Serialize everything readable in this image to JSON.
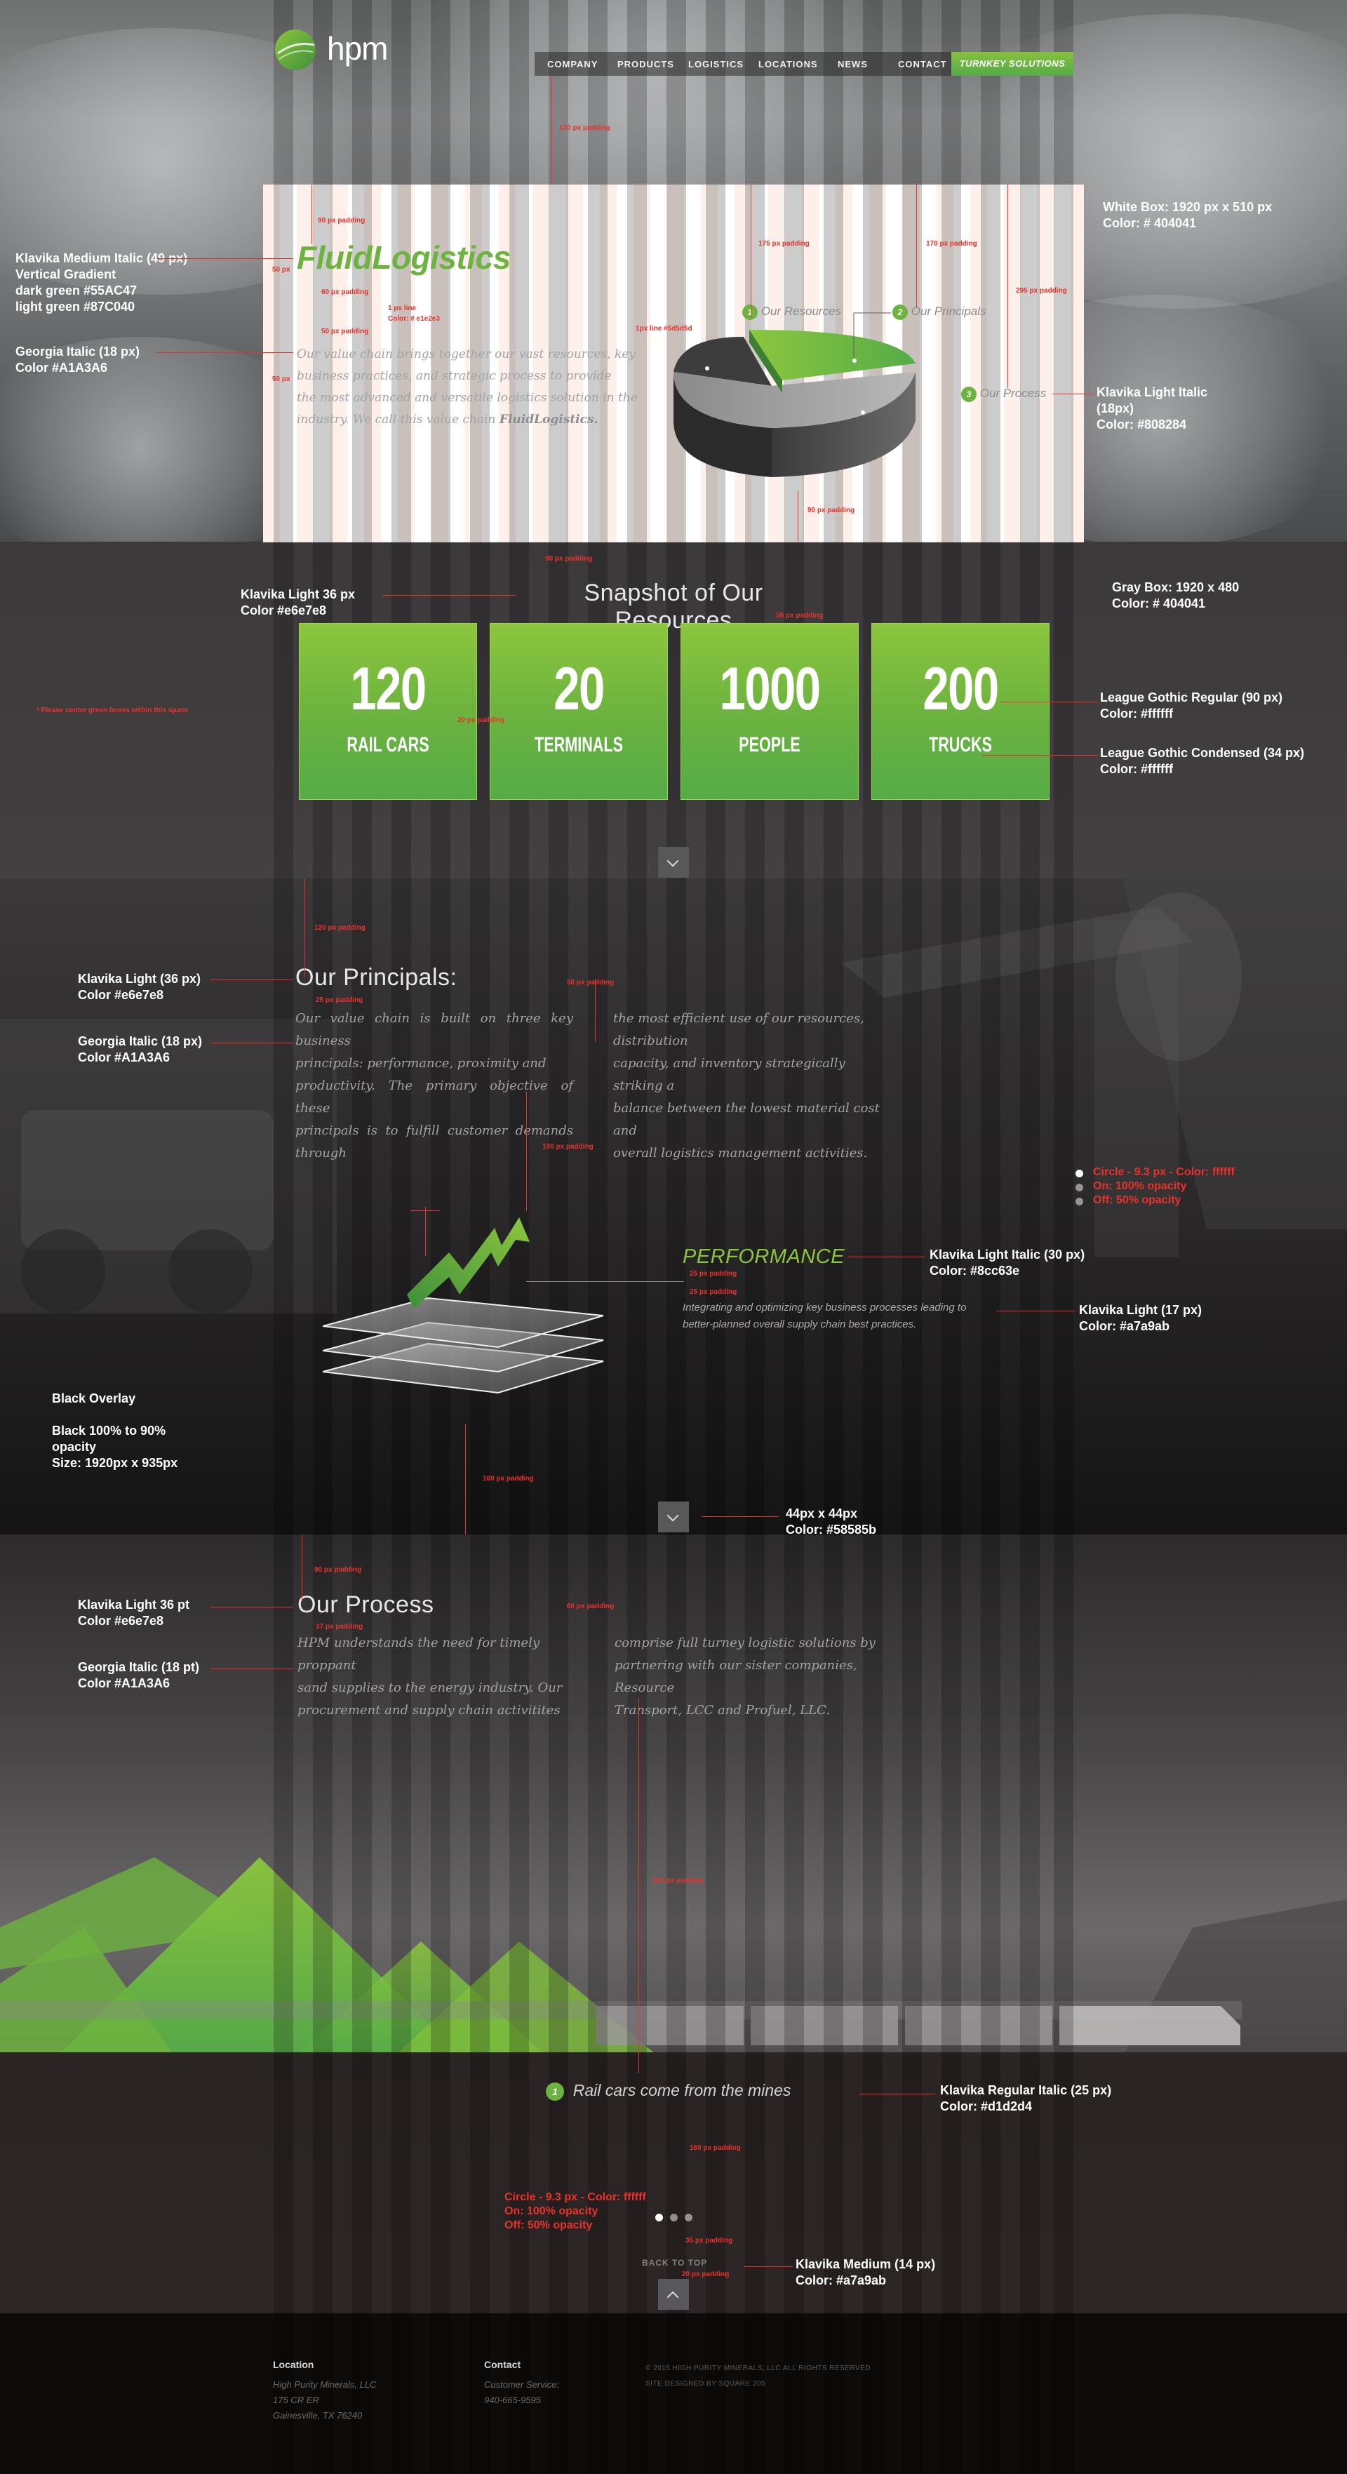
{
  "brand": {
    "logo_text": "hpm"
  },
  "nav": {
    "items": [
      "COMPANY",
      "PRODUCTS",
      "LOGISTICS",
      "LOCATIONS",
      "NEWS",
      "CONTACT"
    ],
    "cta": "TURNKEY SOLUTIONS"
  },
  "hero": {
    "title": "FluidLogistics",
    "body_lines": [
      "Our value chain brings together our vast resources, key",
      "business practices, and strategic process to provide",
      "the most advanced and versatile logistics solution in the",
      "industry. We call this value chain"
    ],
    "body_emphasis": "FluidLogistics.",
    "labels": [
      {
        "num": "1",
        "text": "Our Resources"
      },
      {
        "num": "2",
        "text": "Our Principals"
      },
      {
        "num": "3",
        "text": "Our Process"
      }
    ]
  },
  "snapshot": {
    "title": "Snapshot of Our Resources",
    "tiles": [
      {
        "value": "120",
        "label": "RAIL CARS"
      },
      {
        "value": "20",
        "label": "TERMINALS"
      },
      {
        "value": "1000",
        "label": "PEOPLE"
      },
      {
        "value": "200",
        "label": "TRUCKS"
      }
    ]
  },
  "principals": {
    "title": "Our Principals:",
    "col1": [
      "Our value chain is built on three key business",
      "principals: performance, proximity and",
      "productivity. The primary objective of these",
      "principals is to fulfill customer demands through"
    ],
    "col2": [
      "the most efficient use of our resources, distribution",
      "capacity, and inventory strategically striking a",
      "balance between the lowest material cost and",
      "overall logistics management activities."
    ],
    "feature_title": "PERFORMANCE",
    "feature_body": [
      "Integrating and optimizing key business processes leading to",
      "better-planned overall supply chain best practices."
    ]
  },
  "process": {
    "title": "Our Process",
    "col1": [
      "HPM understands the need for timely proppant",
      "sand supplies to the energy industry. Our",
      "procurement and supply chain activitites"
    ],
    "col2": [
      "comprise full turney logistic solutions by",
      "partnering with our sister companies, Resource",
      "Transport, LCC and Profuel, LLC."
    ],
    "step_num": "1",
    "step_text": "Rail cars come from the mines",
    "back_to_top": "BACK TO TOP"
  },
  "footer": {
    "location_heading": "Location",
    "location_lines": [
      "High Purity Minerals, LLC",
      "175 CR ER",
      "Gainesville, TX 76240"
    ],
    "contact_heading": "Contact",
    "contact_lines": [
      "Customer Service:",
      "940-665-9595"
    ],
    "copyright": "© 2015 HIGH PURITY MINERALS, LLC ALL RIGHTS RESERVED",
    "credit": "SITE DESIGNED BY SQUARE 205"
  },
  "annotations": {
    "a1": [
      "Klavika Medium Italic (49 px)",
      "Vertical Gradient",
      "dark green #55AC47",
      "light green #87C040"
    ],
    "a2": [
      "Georgia Italic (18 px)",
      "Color #A1A3A6"
    ],
    "a3": [
      "White Box: 1920 px x 510 px",
      "Color: # 404041"
    ],
    "a4": [
      "Klavika Light Italic",
      "(18px)",
      "Color: #808284"
    ],
    "a5": [
      "Klavika Light 36 px",
      "Color #e6e7e8"
    ],
    "a6": [
      "Gray Box: 1920 x 480",
      "Color: # 404041"
    ],
    "a7": [
      "League Gothic  Regular (90 px)",
      "Color: #ffffff"
    ],
    "a8": [
      "League Gothic Condensed (34 px)",
      "Color: #ffffff"
    ],
    "a9": [
      "Klavika Light (36 px)",
      "Color #e6e7e8"
    ],
    "a10": [
      "Georgia Italic (18 px)",
      "Color #A1A3A6"
    ],
    "a11": [
      "Circle - 9.3 px - Color: ffffff",
      "On: 100% opacity",
      "Off: 50% opacity"
    ],
    "a12": [
      "Klavika Light Italic (30 px)",
      "Color: #8cc63e"
    ],
    "a13": [
      "Klavika Light (17 px)",
      "Color: #a7a9ab"
    ],
    "a14": [
      "Black Overlay",
      "",
      "Black 100% to 90%",
      "opacity",
      "Size:  1920px  x  935px"
    ],
    "a15": [
      "44px x 44px",
      "Color: #58585b"
    ],
    "a16": [
      "Klavika Light 36 pt",
      "Color #e6e7e8"
    ],
    "a17": [
      "Georgia Italic (18 pt)",
      "Color #A1A3A6"
    ],
    "a18": [
      "Klavika Regular Italic (25 px)",
      "Color: #d1d2d4"
    ],
    "a19": [
      "Circle - 9.3 px - Color: ffffff",
      "On: 100% opacity",
      "Off: 50% opacity"
    ],
    "a20": [
      "Klavika Medium (14 px)",
      "Color: #a7a9ab"
    ],
    "center_note": "* Please center green boxes within this space",
    "paddings": [
      "130 px padding",
      "90 px padding",
      "50 px",
      "60 px padding",
      "50 px padding",
      "50 px",
      "1 px line",
      "Color: # e1e2e3",
      "175 px padding",
      "170 px padding",
      "295 px padding",
      "1px line #5d5d5d",
      "90 px padding",
      "90 px padding",
      "50 px padding",
      "20 px padding",
      "120 px padding",
      "25 px padding",
      "50 px padding",
      "100 px padding",
      "25 px padding",
      "25 px padding",
      "160 px padding",
      "90 px padding",
      "37 px padding",
      "60 px padding",
      "300 px padding",
      "160 px padding",
      "35 px padding",
      "20 px padding"
    ]
  },
  "colors": {
    "green_dark": "#55AC47",
    "green_light": "#87C040",
    "accent": "#8cc63e",
    "gray_box": "#404041",
    "chevron": "#58585b"
  }
}
